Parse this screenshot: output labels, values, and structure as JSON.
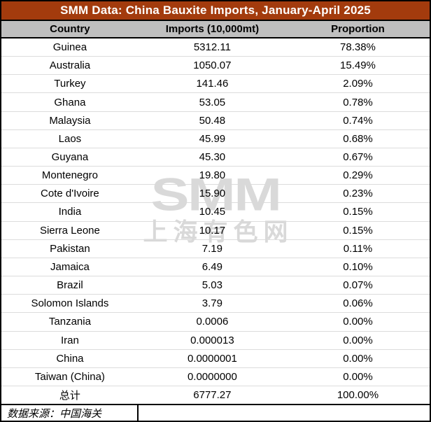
{
  "title": "SMM Data: China Bauxite Imports, January-April 2025",
  "columns": {
    "country": "Country",
    "imports": "Imports (10,000mt)",
    "proportion": "Proportion"
  },
  "table": {
    "rows": [
      {
        "country": "Guinea",
        "imports": "5312.11",
        "proportion": "78.38%"
      },
      {
        "country": "Australia",
        "imports": "1050.07",
        "proportion": "15.49%"
      },
      {
        "country": "Turkey",
        "imports": "141.46",
        "proportion": "2.09%"
      },
      {
        "country": "Ghana",
        "imports": "53.05",
        "proportion": "0.78%"
      },
      {
        "country": "Malaysia",
        "imports": "50.48",
        "proportion": "0.74%"
      },
      {
        "country": "Laos",
        "imports": "45.99",
        "proportion": "0.68%"
      },
      {
        "country": "Guyana",
        "imports": "45.30",
        "proportion": "0.67%"
      },
      {
        "country": "Montenegro",
        "imports": "19.80",
        "proportion": "0.29%"
      },
      {
        "country": "Cote d'Ivoire",
        "imports": "15.90",
        "proportion": "0.23%"
      },
      {
        "country": "India",
        "imports": "10.45",
        "proportion": "0.15%"
      },
      {
        "country": "Sierra Leone",
        "imports": "10.17",
        "proportion": "0.15%"
      },
      {
        "country": "Pakistan",
        "imports": "7.19",
        "proportion": "0.11%"
      },
      {
        "country": "Jamaica",
        "imports": "6.49",
        "proportion": "0.10%"
      },
      {
        "country": "Brazil",
        "imports": "5.03",
        "proportion": "0.07%"
      },
      {
        "country": "Solomon Islands",
        "imports": "3.79",
        "proportion": "0.06%"
      },
      {
        "country": "Tanzania",
        "imports": "0.0006",
        "proportion": "0.00%"
      },
      {
        "country": "Iran",
        "imports": "0.000013",
        "proportion": "0.00%"
      },
      {
        "country": "China",
        "imports": "0.0000001",
        "proportion": "0.00%"
      },
      {
        "country": "Taiwan (China)",
        "imports": "0.0000000",
        "proportion": "0.00%"
      },
      {
        "country": "总计",
        "imports": "6777.27",
        "proportion": "100.00%"
      }
    ]
  },
  "footer": {
    "source": "数据来源：中国海关"
  },
  "watermark": {
    "logo": "SMM",
    "cn": "上海有色网"
  },
  "colors": {
    "title_bg": "#A33B0D",
    "header_bg": "#BFBFBF",
    "row_divider": "#DCDCDC",
    "watermark": "#D9D9D9"
  }
}
